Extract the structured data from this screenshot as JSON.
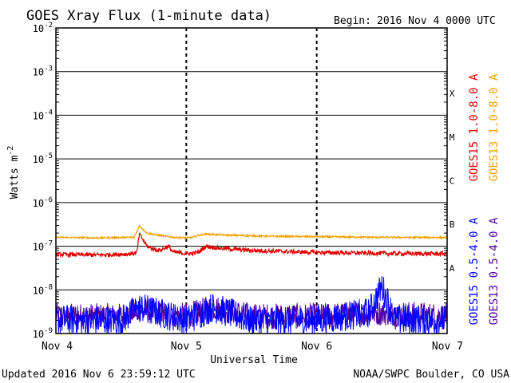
{
  "header": {
    "title": "GOES Xray Flux (1-minute data)",
    "begin_label": "Begin:",
    "begin_value": "2016 Nov 4 0000 UTC"
  },
  "footer": {
    "updated": "Updated 2016 Nov  6 23:59:12 UTC",
    "credit": "NOAA/SWPC Boulder, CO USA"
  },
  "chart_data": {
    "type": "line",
    "xlabel": "Universal Time",
    "ylabel": "Watts m",
    "ylabel_exponent": "-2",
    "x_ticks": [
      "Nov 4",
      "Nov 5",
      "Nov 6",
      "Nov 7"
    ],
    "x_range": [
      "2016-11-04 00:00",
      "2016-11-07 00:00"
    ],
    "ylim": [
      1e-09,
      0.01
    ],
    "yscale": "log",
    "y_ticks": [
      {
        "base": "10",
        "exp": "-2"
      },
      {
        "base": "10",
        "exp": "-3"
      },
      {
        "base": "10",
        "exp": "-4"
      },
      {
        "base": "10",
        "exp": "-5"
      },
      {
        "base": "10",
        "exp": "-6"
      },
      {
        "base": "10",
        "exp": "-7"
      },
      {
        "base": "10",
        "exp": "-8"
      },
      {
        "base": "10",
        "exp": "-9"
      }
    ],
    "flare_classes": [
      "X",
      "M",
      "C",
      "B",
      "A"
    ],
    "grid": true,
    "series": [
      {
        "name": "GOES15 1.0-8.0 A",
        "color": "#e00000",
        "x_days": [
          0.0,
          0.3,
          0.55,
          0.62,
          0.64,
          0.7,
          0.75,
          0.8,
          0.86,
          0.9,
          1.0,
          1.05,
          1.1,
          1.15,
          1.2,
          1.3,
          1.5,
          1.8,
          2.0,
          2.3,
          2.6,
          3.0
        ],
        "values": [
          6.5e-08,
          6.3e-08,
          6.6e-08,
          7e-08,
          1.9e-07,
          1e-07,
          8.5e-08,
          8e-08,
          1e-07,
          7.3e-08,
          6.8e-08,
          6.8e-08,
          7.5e-08,
          1e-07,
          9.5e-08,
          8.8e-08,
          8e-08,
          7.5e-08,
          7.2e-08,
          7e-08,
          6.8e-08,
          6.7e-08
        ]
      },
      {
        "name": "GOES13 1.0-8.0 A",
        "color": "#f0a000",
        "x_days": [
          0.0,
          0.3,
          0.6,
          0.64,
          0.7,
          0.78,
          0.9,
          1.0,
          1.05,
          1.1,
          1.15,
          1.3,
          1.6,
          2.0,
          2.5,
          3.0
        ],
        "values": [
          1.6e-07,
          1.55e-07,
          1.6e-07,
          2.9e-07,
          2e-07,
          1.8e-07,
          1.6e-07,
          1.55e-07,
          1.6e-07,
          1.8e-07,
          1.9e-07,
          1.8e-07,
          1.7e-07,
          1.65e-07,
          1.6e-07,
          1.58e-07
        ]
      },
      {
        "name": "GOES15 0.5-4.0 A",
        "color": "#0000ff",
        "x_days": [
          0.0,
          0.5,
          0.64,
          1.0,
          1.2,
          1.5,
          2.0,
          2.4,
          2.5,
          2.55,
          2.6,
          3.0
        ],
        "values": [
          2e-09,
          2e-09,
          4e-09,
          2e-09,
          4e-09,
          2e-09,
          2e-09,
          3e-09,
          1.2e-08,
          5e-09,
          2e-09,
          2e-09
        ]
      },
      {
        "name": "GOES13 0.5-4.0 A",
        "color": "#5000a0",
        "x_days": [
          0.0,
          0.5,
          0.64,
          1.0,
          1.2,
          1.5,
          2.0,
          2.5,
          3.0
        ],
        "values": [
          2.5e-09,
          2.5e-09,
          3.5e-09,
          2.5e-09,
          4e-09,
          2.5e-09,
          2.5e-09,
          3e-09,
          2.5e-09
        ]
      }
    ]
  }
}
